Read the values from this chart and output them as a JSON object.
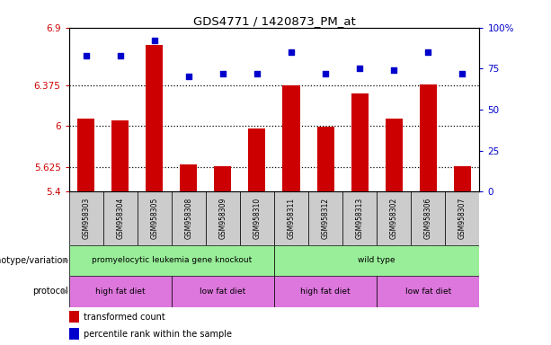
{
  "title": "GDS4771 / 1420873_PM_at",
  "samples": [
    "GSM958303",
    "GSM958304",
    "GSM958305",
    "GSM958308",
    "GSM958309",
    "GSM958310",
    "GSM958311",
    "GSM958312",
    "GSM958313",
    "GSM958302",
    "GSM958306",
    "GSM958307"
  ],
  "bar_values": [
    6.07,
    6.05,
    6.74,
    5.65,
    5.63,
    5.98,
    6.37,
    5.99,
    6.3,
    6.07,
    6.38,
    5.63
  ],
  "percentile_values": [
    83,
    83,
    92,
    70,
    72,
    72,
    85,
    72,
    75,
    74,
    85,
    72
  ],
  "ylim_left": [
    5.4,
    6.9
  ],
  "ylim_right": [
    0,
    100
  ],
  "yticks_left": [
    5.4,
    5.625,
    6.0,
    6.375,
    6.9
  ],
  "yticks_right": [
    0,
    25,
    50,
    75,
    100
  ],
  "ytick_labels_left": [
    "5.4",
    "5.625",
    "6",
    "6.375",
    "6.9"
  ],
  "ytick_labels_right": [
    "0",
    "25",
    "50",
    "75",
    "100%"
  ],
  "bar_color": "#cc0000",
  "dot_color": "#0000cc",
  "bar_bottom": 5.4,
  "genotype_data": [
    {
      "label": "promyelocytic leukemia gene knockout",
      "start": 0,
      "end": 6,
      "color": "#99ee99"
    },
    {
      "label": "wild type",
      "start": 6,
      "end": 12,
      "color": "#99ee99"
    }
  ],
  "protocol_data": [
    {
      "label": "high fat diet",
      "start": 0,
      "end": 3,
      "color": "#dd77dd"
    },
    {
      "label": "low fat diet",
      "start": 3,
      "end": 6,
      "color": "#dd77dd"
    },
    {
      "label": "high fat diet",
      "start": 6,
      "end": 9,
      "color": "#dd77dd"
    },
    {
      "label": "low fat diet",
      "start": 9,
      "end": 12,
      "color": "#dd77dd"
    }
  ],
  "genotype_label": "genotype/variation",
  "protocol_label": "protocol",
  "legend_bar": "transformed count",
  "legend_dot": "percentile rank within the sample",
  "tick_color_left": "#cc0000",
  "tick_color_right": "#0000cc",
  "sample_box_color": "#cccccc",
  "grid_dotted_color": "black"
}
